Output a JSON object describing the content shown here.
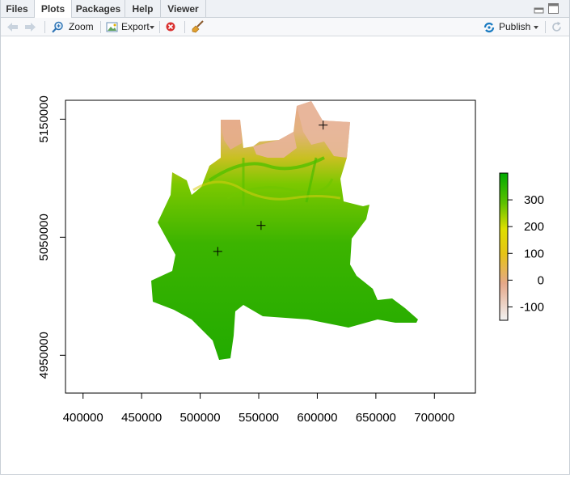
{
  "tabs": [
    {
      "label": "Files",
      "active": false
    },
    {
      "label": "Plots",
      "active": true
    },
    {
      "label": "Packages",
      "active": false
    },
    {
      "label": "Help",
      "active": false
    },
    {
      "label": "Viewer",
      "active": false
    }
  ],
  "toolbar": {
    "zoom_label": "Zoom",
    "export_label": "Export",
    "publish_label": "Publish"
  },
  "icons": {
    "back": "arrow-left-icon",
    "forward": "arrow-right-icon",
    "zoom": "magnifier-icon",
    "export": "export-image-icon",
    "remove": "remove-plot-icon",
    "clear": "broom-icon",
    "publish": "publish-icon",
    "refresh": "refresh-icon"
  },
  "colors": {
    "accent_blue": "#1a7bc1",
    "remove_red": "#d9302f"
  },
  "chart_data": {
    "type": "heatmap",
    "title": "",
    "xlabel": "",
    "ylabel": "",
    "xlim": [
      385000,
      735000
    ],
    "ylim": [
      4918000,
      5166000
    ],
    "x_ticks": [
      400000,
      450000,
      500000,
      550000,
      600000,
      650000,
      700000
    ],
    "x_tick_labels": [
      "400000",
      "450000",
      "500000",
      "550000",
      "600000",
      "650000",
      "700000"
    ],
    "y_ticks": [
      4950000,
      5050000,
      5150000
    ],
    "y_tick_labels": [
      "4950000",
      "5050000",
      "5150000"
    ],
    "colorbar": {
      "range": [
        -150,
        400
      ],
      "ticks": [
        -100,
        0,
        100,
        200,
        300
      ],
      "tick_labels": [
        "-100",
        "0",
        "100",
        "200",
        "300"
      ],
      "colors": [
        "#f2f2f2",
        "#e5a889",
        "#e6c316",
        "#e0e000",
        "#00aa00"
      ]
    },
    "points": [
      {
        "x": 605000,
        "y": 5145000
      },
      {
        "x": 552000,
        "y": 5060000
      },
      {
        "x": 515000,
        "y": 5038000
      }
    ],
    "grid": false,
    "legend_position": "right"
  }
}
